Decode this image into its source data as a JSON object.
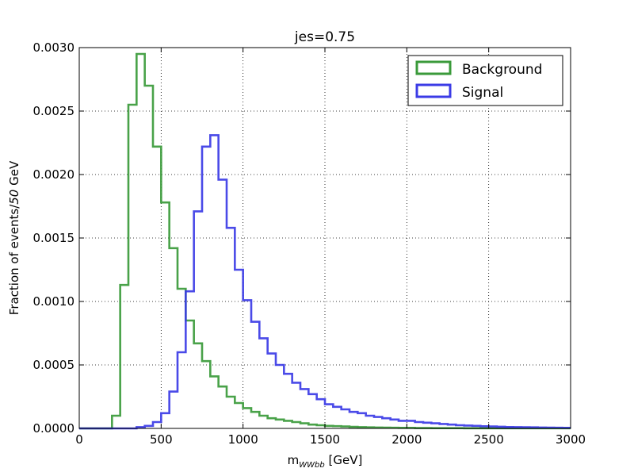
{
  "chart_data": {
    "type": "line",
    "title": "jes=0.75",
    "xlabel_main": "m",
    "xlabel_sub": "WWbb",
    "xlabel_unit": " [GeV]",
    "ylabel_prefix": "Fraction of events/",
    "ylabel_italic": "50",
    "ylabel_suffix": " GeV",
    "xlim": [
      0,
      3000
    ],
    "ylim": [
      0,
      0.003
    ],
    "x_ticks": [
      "0",
      "500",
      "1000",
      "1500",
      "2000",
      "2500",
      "3000"
    ],
    "y_ticks": [
      "0.0000",
      "0.0005",
      "0.0010",
      "0.0015",
      "0.0020",
      "0.0025",
      "0.0030"
    ],
    "grid": true,
    "legend_position": "top-right",
    "bin_width": 50,
    "series": [
      {
        "name": "Background",
        "color": "#3a9a3a",
        "x_start": 0,
        "values": [
          0,
          0,
          0,
          0,
          0.0001,
          0.00113,
          0.00255,
          0.00295,
          0.0027,
          0.00222,
          0.00178,
          0.00142,
          0.0011,
          0.00085,
          0.00067,
          0.00053,
          0.00041,
          0.00033,
          0.00025,
          0.0002,
          0.00016,
          0.00013,
          0.0001,
          8e-05,
          7e-05,
          6e-05,
          5e-05,
          4e-05,
          3e-05,
          2.5e-05,
          2e-05,
          1.8e-05,
          1.5e-05,
          1.2e-05,
          1e-05,
          8e-06,
          7e-06,
          6e-06,
          5e-06,
          4e-06,
          4e-06,
          3e-06,
          3e-06,
          2e-06,
          2e-06,
          2e-06,
          2e-06,
          1e-06,
          1e-06,
          1e-06,
          1e-06,
          1e-06,
          1e-06,
          1e-06,
          1e-06,
          1e-06,
          1e-06,
          1e-06,
          1e-06,
          1e-06
        ]
      },
      {
        "name": "Signal",
        "color": "#3b3be6",
        "x_start": 0,
        "values": [
          0,
          0,
          0,
          0,
          0,
          0,
          0,
          1e-05,
          2e-05,
          5e-05,
          0.00012,
          0.00029,
          0.0006,
          0.00108,
          0.00171,
          0.00222,
          0.00231,
          0.00196,
          0.00158,
          0.00125,
          0.00101,
          0.00084,
          0.00071,
          0.00059,
          0.0005,
          0.00043,
          0.00036,
          0.00031,
          0.00027,
          0.00023,
          0.00019,
          0.00017,
          0.00015,
          0.00013,
          0.00012,
          0.0001,
          9e-05,
          8e-05,
          7e-05,
          6e-05,
          6e-05,
          5e-05,
          4.5e-05,
          4e-05,
          3.5e-05,
          3e-05,
          2.5e-05,
          2.2e-05,
          2e-05,
          1.7e-05,
          1.5e-05,
          1.3e-05,
          1.1e-05,
          1e-05,
          9e-06,
          8e-06,
          7e-06,
          6e-06,
          5e-06,
          4e-06
        ]
      }
    ]
  }
}
